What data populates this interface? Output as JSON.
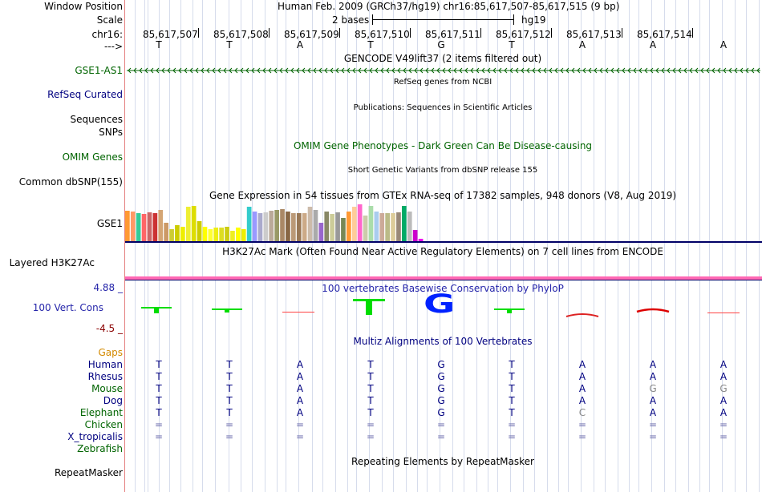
{
  "header": {
    "window_position_label": "Window Position",
    "scale_label": "Scale",
    "chrom_label": "chr16:",
    "arrow_label": "--->",
    "assembly_title": "Human Feb. 2009 (GRCh37/hg19)   chr16:85,617,507-85,617,515 (9 bp)",
    "scale_text": "2 bases",
    "scale_assembly": "hg19",
    "positions": [
      "85,617,507",
      "85,617,508",
      "85,617,509",
      "85,617,510",
      "85,617,511",
      "85,617,512",
      "85,617,513",
      "85,617,514"
    ],
    "reference_bases": [
      "T",
      "T",
      "A",
      "T",
      "G",
      "T",
      "A",
      "A",
      "A"
    ]
  },
  "tracks": {
    "gencode_title": "GENCODE V49lift37 (2 items filtered out)",
    "gene_label": "GSE1-AS1",
    "refseq_label": "RefSeq Curated",
    "refseq_title": "RefSeq genes from NCBI",
    "sequences_label": "Sequences",
    "publications_title": "Publications: Sequences in Scientific Articles",
    "snps_label": "SNPs",
    "omim_label": "OMIM Genes",
    "omim_title": "OMIM Gene Phenotypes - Dark Green Can Be Disease-causing",
    "dbsnp_title": "Short Genetic Variants from dbSNP release 155",
    "dbsnp_label": "Common dbSNP(155)",
    "gtex_title": "Gene Expression in 54 tissues from GTEx RNA-seq of 17382 samples, 948 donors (V8, Aug 2019)",
    "gtex_label": "GSE1",
    "h3k27ac_title": "H3K27Ac Mark (Often Found Near Active Regulatory Elements) on 7 cell lines from ENCODE",
    "h3k27ac_label": "Layered H3K27Ac",
    "cons_max": "4.88 _",
    "cons_title": "100 vertebrates Basewise Conservation by PhyloP",
    "cons_label": "100 Vert. Cons",
    "cons_min": "-4.5 _",
    "multiz_title": "Multiz Alignments of 100 Vertebrates",
    "gaps_label": "Gaps",
    "repeat_title": "Repeating Elements by RepeatMasker",
    "repeat_label": "RepeatMasker"
  },
  "gtex_colors": [
    "#ff9933",
    "#ff9966",
    "#33cc99",
    "#ff6666",
    "#cc6666",
    "#cc3333",
    "#d4a574",
    "#cc9966",
    "#cccc33",
    "#cccc00",
    "#eeee00",
    "#eeee33",
    "#dddd00",
    "#cccc00",
    "#ffff00",
    "#ffff33",
    "#eeee11",
    "#dddd22",
    "#cccc11",
    "#eeee22",
    "#ffff00",
    "#eeee00",
    "#33cccc",
    "#9999ff",
    "#aaaacc",
    "#cccccc",
    "#bbaa99",
    "#999966",
    "#aa8866",
    "#886644",
    "#bb9977",
    "#997755",
    "#ccaa88",
    "#ccbbaa",
    "#aaaaaa",
    "#9966cc",
    "#888866",
    "#cccc99",
    "#999999",
    "#778855",
    "#ff9933",
    "#ffcc99",
    "#ff66cc",
    "#ccccaa",
    "#aaddaa",
    "#aaccee",
    "#ccaa99",
    "#bbbb88",
    "#ddcc99",
    "#998877",
    "#00aa66",
    "#bbbbbb",
    "#cc00cc",
    "#ee00ee"
  ],
  "gtex_values": [
    0.82,
    0.8,
    0.75,
    0.74,
    0.78,
    0.76,
    0.84,
    0.5,
    0.33,
    0.44,
    0.4,
    0.94,
    0.96,
    0.55,
    0.4,
    0.33,
    0.36,
    0.36,
    0.39,
    0.28,
    0.37,
    0.33,
    0.93,
    0.8,
    0.76,
    0.78,
    0.82,
    0.84,
    0.86,
    0.8,
    0.77,
    0.76,
    0.76,
    0.94,
    0.85,
    0.5,
    0.8,
    0.74,
    0.78,
    0.62,
    0.8,
    0.93,
    1.0,
    0.7,
    0.96,
    0.8,
    0.76,
    0.76,
    0.76,
    0.78,
    0.96,
    0.8,
    0.3,
    0.06
  ],
  "multiz": {
    "species": [
      {
        "name": "Human",
        "color": "#000080",
        "bases": [
          "T",
          "T",
          "A",
          "T",
          "G",
          "T",
          "A",
          "A",
          "A"
        ]
      },
      {
        "name": "Rhesus",
        "color": "#000080",
        "bases": [
          "T",
          "T",
          "A",
          "T",
          "G",
          "T",
          "A",
          "A",
          "A"
        ]
      },
      {
        "name": "Mouse",
        "color": "#006400",
        "bases": [
          "T",
          "T",
          "A",
          "T",
          "G",
          "T",
          "A",
          "G",
          "G"
        ]
      },
      {
        "name": "Dog",
        "color": "#000080",
        "bases": [
          "T",
          "T",
          "A",
          "T",
          "G",
          "T",
          "A",
          "A",
          "A"
        ]
      },
      {
        "name": "Elephant",
        "color": "#006400",
        "bases": [
          "T",
          "T",
          "A",
          "T",
          "G",
          "T",
          "C",
          "A",
          "A"
        ]
      },
      {
        "name": "Chicken",
        "color": "#006400",
        "bases": [
          "=",
          "=",
          "=",
          "=",
          "=",
          "=",
          "=",
          "=",
          "="
        ]
      },
      {
        "name": "X_tropicalis",
        "color": "#000080",
        "bases": [
          "=",
          "=",
          "=",
          "=",
          "=",
          "=",
          "=",
          "=",
          "="
        ]
      },
      {
        "name": "Zebrafish",
        "color": "#006400",
        "bases": []
      }
    ]
  },
  "colors": {
    "label_green": "#006400",
    "label_blue": "#000080",
    "gaps_orange": "#d48a00",
    "cons_blue": "#2525aa",
    "cons_red": "#8a0000",
    "h3k27ac_line": "#000066",
    "pink_band": "#ff69b4"
  }
}
